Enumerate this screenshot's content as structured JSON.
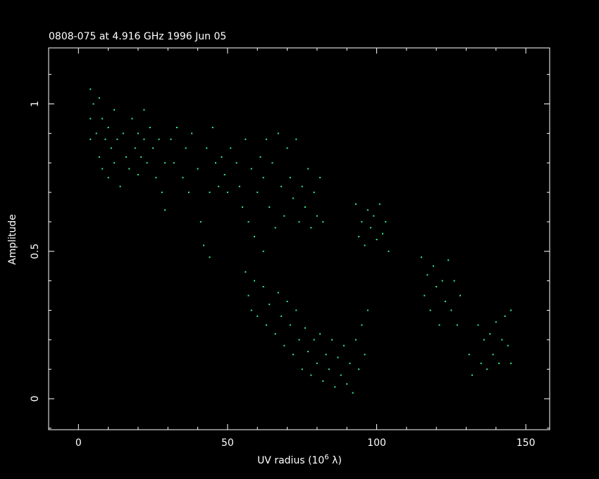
{
  "chart_data": {
    "type": "scatter",
    "title": "0808-075 at 4.916 GHz 1996 Jun 05",
    "xlabel": {
      "text": "UV radius  (10",
      "sup": "6",
      "tail": " λ)"
    },
    "ylabel": "Amplitude",
    "color": "#33ee88",
    "xlim": [
      -10,
      158
    ],
    "ylim": [
      -0.105,
      1.19
    ],
    "xticks": [
      0,
      50,
      100,
      150
    ],
    "yticks": [
      0,
      0.5,
      1
    ],
    "xminorticks": [
      -10,
      10,
      20,
      30,
      40,
      60,
      70,
      80,
      90,
      110,
      120,
      130,
      140
    ],
    "yminorticks": [
      -0.1,
      0.1,
      0.2,
      0.3,
      0.4,
      0.6,
      0.7,
      0.8,
      0.9,
      1.1
    ],
    "x": [
      4,
      4,
      4,
      5,
      6,
      7,
      7,
      8,
      8,
      9,
      10,
      10,
      11,
      12,
      12,
      13,
      14,
      15,
      16,
      17,
      18,
      19,
      20,
      20,
      21,
      22,
      22,
      23,
      24,
      25,
      26,
      27,
      28,
      29,
      29,
      31,
      32,
      33,
      35,
      36,
      37,
      38,
      40,
      41,
      42,
      43,
      44,
      44,
      45,
      46,
      47,
      48,
      49,
      50,
      51,
      53,
      54,
      55,
      56,
      57,
      58,
      59,
      60,
      61,
      62,
      62,
      63,
      64,
      65,
      66,
      67,
      68,
      69,
      70,
      71,
      72,
      73,
      74,
      75,
      76,
      77,
      78,
      79,
      80,
      81,
      82,
      56,
      57,
      58,
      59,
      60,
      62,
      63,
      64,
      66,
      67,
      68,
      69,
      70,
      71,
      72,
      73,
      74,
      75,
      76,
      77,
      78,
      79,
      80,
      81,
      82,
      83,
      84,
      85,
      86,
      87,
      88,
      89,
      90,
      91,
      92,
      93,
      94,
      95,
      96,
      97,
      93,
      94,
      95,
      96,
      97,
      98,
      99,
      100,
      101,
      102,
      103,
      104,
      115,
      116,
      117,
      118,
      119,
      120,
      121,
      122,
      123,
      124,
      125,
      126,
      127,
      128,
      131,
      132,
      134,
      135,
      136,
      137,
      138,
      139,
      140,
      141,
      142,
      143,
      144,
      145,
      145
    ],
    "values": [
      1.05,
      0.95,
      0.88,
      1.0,
      0.9,
      0.82,
      1.02,
      0.95,
      0.78,
      0.88,
      0.92,
      0.75,
      0.85,
      0.98,
      0.8,
      0.88,
      0.72,
      0.9,
      0.82,
      0.78,
      0.95,
      0.85,
      0.76,
      0.9,
      0.82,
      0.98,
      0.88,
      0.8,
      0.92,
      0.85,
      0.75,
      0.88,
      0.7,
      0.8,
      0.64,
      0.88,
      0.8,
      0.92,
      0.75,
      0.85,
      0.7,
      0.9,
      0.78,
      0.6,
      0.52,
      0.85,
      0.7,
      0.48,
      0.92,
      0.8,
      0.72,
      0.82,
      0.76,
      0.7,
      0.85,
      0.8,
      0.72,
      0.65,
      0.88,
      0.6,
      0.78,
      0.55,
      0.7,
      0.82,
      0.5,
      0.75,
      0.88,
      0.65,
      0.8,
      0.58,
      0.9,
      0.72,
      0.62,
      0.85,
      0.75,
      0.68,
      0.88,
      0.6,
      0.72,
      0.65,
      0.78,
      0.58,
      0.7,
      0.62,
      0.75,
      0.6,
      0.43,
      0.35,
      0.3,
      0.4,
      0.28,
      0.38,
      0.25,
      0.32,
      0.22,
      0.36,
      0.28,
      0.18,
      0.33,
      0.25,
      0.15,
      0.3,
      0.2,
      0.1,
      0.24,
      0.16,
      0.08,
      0.2,
      0.12,
      0.22,
      0.06,
      0.15,
      0.1,
      0.2,
      0.04,
      0.14,
      0.08,
      0.18,
      0.05,
      0.12,
      0.02,
      0.2,
      0.1,
      0.25,
      0.15,
      0.3,
      0.66,
      0.55,
      0.6,
      0.52,
      0.64,
      0.58,
      0.62,
      0.54,
      0.66,
      0.56,
      0.6,
      0.5,
      0.48,
      0.35,
      0.42,
      0.3,
      0.45,
      0.38,
      0.25,
      0.4,
      0.33,
      0.47,
      0.3,
      0.4,
      0.25,
      0.35,
      0.15,
      0.08,
      0.25,
      0.12,
      0.2,
      0.1,
      0.22,
      0.15,
      0.26,
      0.12,
      0.2,
      0.28,
      0.18,
      0.3,
      0.12
    ]
  }
}
